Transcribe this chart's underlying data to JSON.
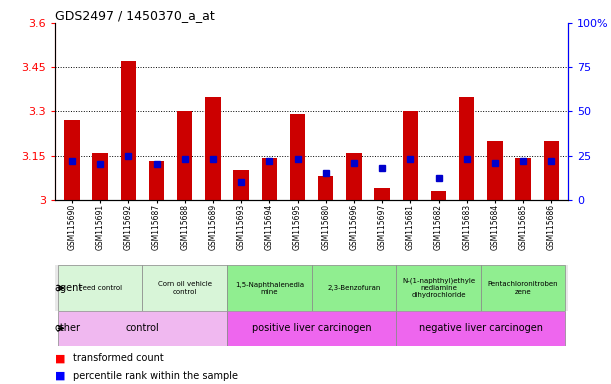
{
  "title": "GDS2497 / 1450370_a_at",
  "samples": [
    "GSM115690",
    "GSM115691",
    "GSM115692",
    "GSM115687",
    "GSM115688",
    "GSM115689",
    "GSM115693",
    "GSM115694",
    "GSM115695",
    "GSM115680",
    "GSM115696",
    "GSM115697",
    "GSM115681",
    "GSM115682",
    "GSM115683",
    "GSM115684",
    "GSM115685",
    "GSM115686"
  ],
  "red_values": [
    3.27,
    3.16,
    3.47,
    3.13,
    3.3,
    3.35,
    3.1,
    3.14,
    3.29,
    3.08,
    3.16,
    3.04,
    3.3,
    3.03,
    3.35,
    3.2,
    3.14,
    3.2
  ],
  "blue_values": [
    22,
    20,
    25,
    20,
    23,
    23,
    10,
    22,
    23,
    15,
    21,
    18,
    23,
    12,
    23,
    21,
    22,
    22
  ],
  "ylim_left": [
    3.0,
    3.6
  ],
  "ylim_right": [
    0,
    100
  ],
  "yticks_left": [
    3.0,
    3.15,
    3.3,
    3.45,
    3.6
  ],
  "yticks_right": [
    0,
    25,
    50,
    75,
    100
  ],
  "ytick_labels_left": [
    "3",
    "3.15",
    "3.3",
    "3.45",
    "3.6"
  ],
  "ytick_labels_right": [
    "0",
    "25",
    "50",
    "75",
    "100%"
  ],
  "agent_groups": [
    {
      "label": "Feed control",
      "start": 0,
      "end": 3,
      "color": "#d8f5d8"
    },
    {
      "label": "Corn oil vehicle\ncontrol",
      "start": 3,
      "end": 6,
      "color": "#d8f5d8"
    },
    {
      "label": "1,5-Naphthalenedia\nmine",
      "start": 6,
      "end": 9,
      "color": "#90ee90"
    },
    {
      "label": "2,3-Benzofuran",
      "start": 9,
      "end": 12,
      "color": "#90ee90"
    },
    {
      "label": "N-(1-naphthyl)ethyle\nnediamine\ndihydrochloride",
      "start": 12,
      "end": 15,
      "color": "#90ee90"
    },
    {
      "label": "Pentachloronitroben\nzene",
      "start": 15,
      "end": 18,
      "color": "#90ee90"
    }
  ],
  "other_groups": [
    {
      "label": "control",
      "start": 0,
      "end": 6,
      "color": "#f0b8f0"
    },
    {
      "label": "positive liver carcinogen",
      "start": 6,
      "end": 12,
      "color": "#ee66ee"
    },
    {
      "label": "negative liver carcinogen",
      "start": 12,
      "end": 18,
      "color": "#ee66ee"
    }
  ],
  "bar_width": 0.55,
  "bar_color_red": "#cc0000",
  "bar_color_blue": "#0000cc",
  "baseline": 3.0,
  "bg_color": "#f0f0f0"
}
